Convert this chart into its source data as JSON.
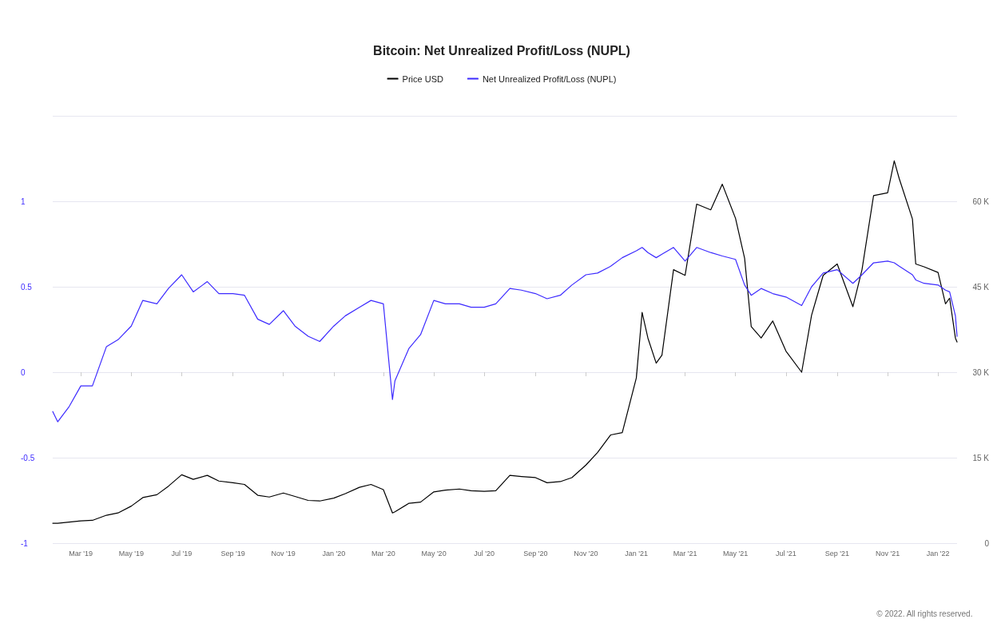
{
  "chart_data": {
    "type": "line",
    "title": "Bitcoin: Net Unrealized Profit/Loss (NUPL)",
    "x": [
      "2019-01-26",
      "2019-02-01",
      "2019-02-15",
      "2019-03-01",
      "2019-03-15",
      "2019-04-01",
      "2019-04-15",
      "2019-05-01",
      "2019-05-15",
      "2019-06-01",
      "2019-06-15",
      "2019-07-01",
      "2019-07-15",
      "2019-08-01",
      "2019-08-15",
      "2019-09-01",
      "2019-09-15",
      "2019-10-01",
      "2019-10-15",
      "2019-11-01",
      "2019-11-15",
      "2019-12-01",
      "2019-12-15",
      "2020-01-01",
      "2020-01-15",
      "2020-02-01",
      "2020-02-15",
      "2020-03-01",
      "2020-03-12",
      "2020-03-15",
      "2020-04-01",
      "2020-04-15",
      "2020-05-01",
      "2020-05-15",
      "2020-06-01",
      "2020-06-15",
      "2020-07-01",
      "2020-07-15",
      "2020-08-01",
      "2020-08-15",
      "2020-09-01",
      "2020-09-15",
      "2020-10-01",
      "2020-10-15",
      "2020-11-01",
      "2020-11-15",
      "2020-12-01",
      "2020-12-15",
      "2021-01-01",
      "2021-01-08",
      "2021-01-15",
      "2021-01-25",
      "2021-02-01",
      "2021-02-15",
      "2021-03-01",
      "2021-03-15",
      "2021-04-01",
      "2021-04-15",
      "2021-05-01",
      "2021-05-12",
      "2021-05-20",
      "2021-06-01",
      "2021-06-15",
      "2021-07-01",
      "2021-07-20",
      "2021-08-01",
      "2021-08-15",
      "2021-09-01",
      "2021-09-20",
      "2021-10-01",
      "2021-10-15",
      "2021-11-01",
      "2021-11-09",
      "2021-11-15",
      "2021-12-01",
      "2021-12-05",
      "2021-12-15",
      "2022-01-01",
      "2022-01-10",
      "2022-01-15",
      "2022-01-22",
      "2022-01-24"
    ],
    "series": [
      {
        "name": "Price USD",
        "color": "#000000",
        "axis": "y2",
        "values": [
          3.5,
          3.5,
          3.7,
          3.9,
          4.0,
          4.9,
          5.3,
          6.5,
          8.0,
          8.5,
          10.0,
          12.0,
          11.2,
          11.9,
          10.9,
          10.6,
          10.3,
          8.4,
          8.1,
          8.8,
          8.2,
          7.5,
          7.4,
          7.9,
          8.7,
          9.8,
          10.3,
          9.4,
          5.3,
          5.5,
          7.0,
          7.2,
          9.0,
          9.3,
          9.5,
          9.2,
          9.1,
          9.2,
          11.9,
          11.7,
          11.5,
          10.6,
          10.8,
          11.5,
          13.7,
          15.9,
          19.0,
          19.4,
          29.0,
          40.5,
          36.0,
          31.6,
          33.0,
          48.0,
          47.0,
          59.5,
          58.5,
          63.0,
          57.0,
          50.0,
          38.0,
          36.0,
          39.0,
          33.7,
          30.0,
          40.0,
          47.0,
          49.0,
          41.5,
          48.0,
          61.0,
          61.5,
          67.1,
          64.0,
          56.9,
          49.0,
          48.5,
          47.5,
          42.0,
          43.0,
          36.0,
          35.3
        ]
      },
      {
        "name": "Net Unrealized Profit/Loss (NUPL)",
        "color": "#3d2bff",
        "values": [
          -0.23,
          -0.29,
          -0.2,
          -0.08,
          -0.08,
          0.15,
          0.19,
          0.27,
          0.42,
          0.4,
          0.49,
          0.57,
          0.47,
          0.53,
          0.46,
          0.46,
          0.45,
          0.31,
          0.28,
          0.36,
          0.27,
          0.21,
          0.18,
          0.27,
          0.33,
          0.38,
          0.42,
          0.4,
          -0.16,
          -0.05,
          0.14,
          0.22,
          0.42,
          0.4,
          0.4,
          0.38,
          0.38,
          0.4,
          0.49,
          0.48,
          0.46,
          0.43,
          0.45,
          0.51,
          0.57,
          0.58,
          0.62,
          0.67,
          0.71,
          0.73,
          0.7,
          0.67,
          0.69,
          0.73,
          0.65,
          0.73,
          0.7,
          0.68,
          0.66,
          0.51,
          0.45,
          0.49,
          0.46,
          0.44,
          0.39,
          0.5,
          0.58,
          0.6,
          0.52,
          0.57,
          0.64,
          0.65,
          0.64,
          0.62,
          0.57,
          0.54,
          0.52,
          0.51,
          0.48,
          0.47,
          0.33,
          0.21
        ]
      }
    ],
    "xlim": [
      "2019-01-26",
      "2022-01-24"
    ],
    "xticks": [
      {
        "value": "2019-03-01",
        "label": "Mar '19"
      },
      {
        "value": "2019-05-01",
        "label": "May '19"
      },
      {
        "value": "2019-07-01",
        "label": "Jul '19"
      },
      {
        "value": "2019-09-01",
        "label": "Sep '19"
      },
      {
        "value": "2019-11-01",
        "label": "Nov '19"
      },
      {
        "value": "2020-01-01",
        "label": "Jan '20"
      },
      {
        "value": "2020-03-01",
        "label": "Mar '20"
      },
      {
        "value": "2020-05-01",
        "label": "May '20"
      },
      {
        "value": "2020-07-01",
        "label": "Jul '20"
      },
      {
        "value": "2020-09-01",
        "label": "Sep '20"
      },
      {
        "value": "2020-11-01",
        "label": "Nov '20"
      },
      {
        "value": "2021-01-01",
        "label": "Jan '21"
      },
      {
        "value": "2021-03-01",
        "label": "Mar '21"
      },
      {
        "value": "2021-05-01",
        "label": "May '21"
      },
      {
        "value": "2021-07-01",
        "label": "Jul '21"
      },
      {
        "value": "2021-09-01",
        "label": "Sep '21"
      },
      {
        "value": "2021-11-01",
        "label": "Nov '21"
      },
      {
        "value": "2022-01-01",
        "label": "Jan '22"
      }
    ],
    "ylim": [
      -1,
      1.5
    ],
    "yticks": [
      -1,
      -0.5,
      0,
      0.5,
      1,
      {
        "value": 1.5,
        "label": null
      }
    ],
    "y2lim": [
      0,
      75
    ],
    "y2ticks": [
      0,
      {
        "value": 15,
        "label": "15 K"
      },
      {
        "value": 30,
        "label": "30 K"
      },
      {
        "value": 45,
        "label": "45 K"
      },
      {
        "value": 60,
        "label": "60 K"
      },
      {
        "value": 75,
        "label": null
      }
    ],
    "grid": "y",
    "legend": "top",
    "marker": "none",
    "annotations": [
      "© 2022. All rights reserved."
    ]
  }
}
